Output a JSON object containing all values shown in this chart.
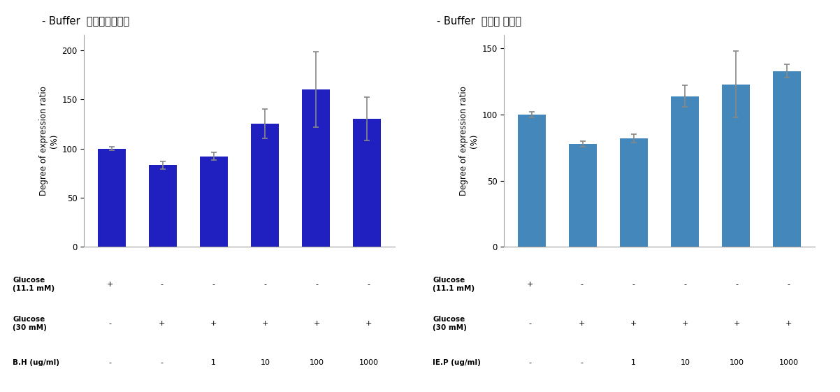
{
  "left_title": "- Buffer  효소가수분해물",
  "right_title": "- Buffer  에타노 침전물",
  "left_ylabel": "Degree of expression ratio\n(%)",
  "right_ylabel": "Degree of expression ratio\n(%)",
  "left_values": [
    100,
    83,
    92,
    125,
    160,
    130
  ],
  "left_errors": [
    2,
    4,
    4,
    15,
    38,
    22
  ],
  "right_values": [
    100,
    78,
    82,
    114,
    123,
    133
  ],
  "right_errors": [
    2,
    2,
    3,
    8,
    25,
    5
  ],
  "left_ylim": [
    0,
    215
  ],
  "right_ylim": [
    0,
    160
  ],
  "left_yticks": [
    0,
    50,
    100,
    150,
    200
  ],
  "right_yticks": [
    0,
    50,
    100,
    150
  ],
  "bar_color_left": "#2020C0",
  "bar_color_right": "#4488BB",
  "background_color": "#ffffff",
  "left_row_labels": [
    "Glucose\n(11.1 mM)",
    "Glucose\n(30 mM)",
    "B.H (ug/ml)"
  ],
  "right_row_labels": [
    "Glucose\n(11.1 mM)",
    "Glucose\n(30 mM)",
    "IE.P (ug/ml)"
  ],
  "row_data_left": [
    [
      "+",
      "-",
      "-",
      "-",
      "-",
      "-"
    ],
    [
      "-",
      "+",
      "+",
      "+",
      "+",
      "+"
    ],
    [
      "-",
      "-",
      "1",
      "10",
      "100",
      "1000"
    ]
  ],
  "row_data_right": [
    [
      "+",
      "-",
      "-",
      "-",
      "-",
      "-"
    ],
    [
      "-",
      "+",
      "+",
      "+",
      "+",
      "+"
    ],
    [
      "-",
      "-",
      "1",
      "10",
      "100",
      "1000"
    ]
  ]
}
